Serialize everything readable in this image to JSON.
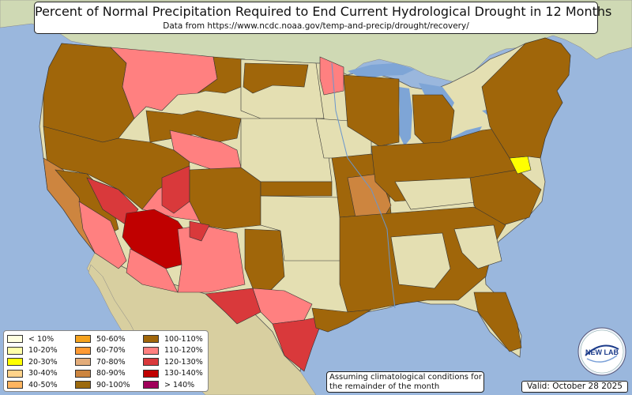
{
  "title": "Percent of Normal Precipitation Required to End Current Hydrological Drought in 12 Months",
  "subtitle": "Data from https://www.ncdc.noaa.gov/temp-and-precip/drought/recovery/",
  "legend": [
    {
      "label": "< 10%",
      "color": "#ffffe0"
    },
    {
      "label": "10-20%",
      "color": "#ffffa8"
    },
    {
      "label": "20-30%",
      "color": "#ffff00"
    },
    {
      "label": "30-40%",
      "color": "#ffd38a"
    },
    {
      "label": "40-50%",
      "color": "#ffb560"
    },
    {
      "label": "50-60%",
      "color": "#f4a21e"
    },
    {
      "label": "60-70%",
      "color": "#ff9a33"
    },
    {
      "label": "70-80%",
      "color": "#e3ac7a"
    },
    {
      "label": "80-90%",
      "color": "#cd853f"
    },
    {
      "label": "90-100%",
      "color": "#9c6a0e"
    },
    {
      "label": "100-110%",
      "color": "#a0660a"
    },
    {
      "label": "110-120%",
      "color": "#ff8080"
    },
    {
      "label": "120-130%",
      "color": "#d9393b"
    },
    {
      "label": "130-140%",
      "color": "#c00000"
    },
    {
      "label": "> 140%",
      "color": "#a0005a"
    }
  ],
  "note": "Assuming climatological conditions for the remainder of the month",
  "valid": "Valid: October 28 2025",
  "logo_text": "NEW LAB",
  "colors": {
    "ocean": "#9ab7dd",
    "land": "#e4dfb2",
    "canada": "#cfd9b4",
    "mexico": "#d8cfa0",
    "lake": "#7ea5d6"
  }
}
